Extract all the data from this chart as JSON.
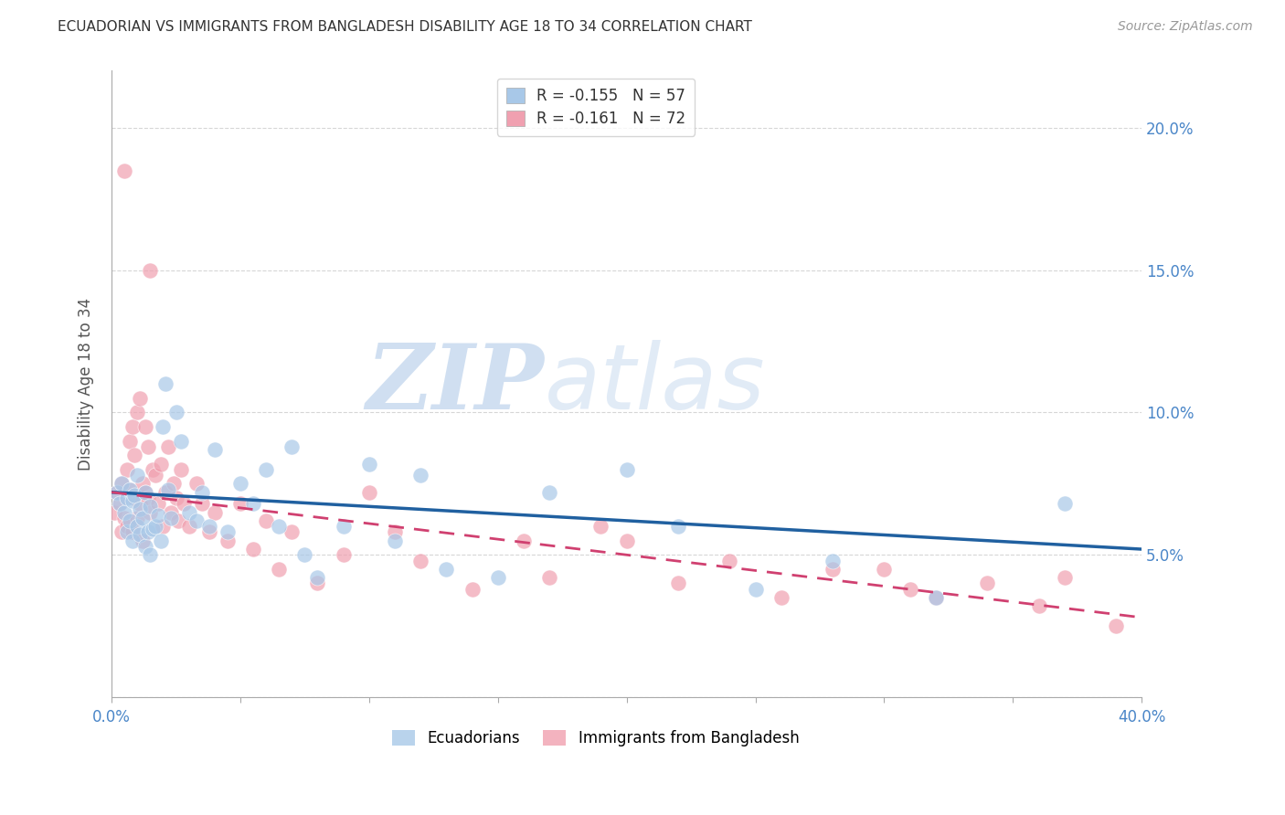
{
  "title": "ECUADORIAN VS IMMIGRANTS FROM BANGLADESH DISABILITY AGE 18 TO 34 CORRELATION CHART",
  "source": "Source: ZipAtlas.com",
  "ylabel": "Disability Age 18 to 34",
  "xlim": [
    0,
    0.4
  ],
  "ylim": [
    0,
    0.22
  ],
  "blue_R": -0.155,
  "blue_N": 57,
  "pink_R": -0.161,
  "pink_N": 72,
  "blue_color": "#a8c8e8",
  "pink_color": "#f0a0b0",
  "blue_line_color": "#2060a0",
  "pink_line_color": "#d04070",
  "watermark_zip": "ZIP",
  "watermark_atlas": "atlas",
  "legend_label_blue": "Ecuadorians",
  "legend_label_pink": "Immigrants from Bangladesh",
  "blue_line_intercept": 0.072,
  "blue_line_slope": -0.05,
  "pink_line_intercept": 0.072,
  "pink_line_slope": -0.11,
  "blue_scatter_x": [
    0.002,
    0.003,
    0.004,
    0.005,
    0.006,
    0.006,
    0.007,
    0.007,
    0.008,
    0.008,
    0.009,
    0.01,
    0.01,
    0.011,
    0.011,
    0.012,
    0.013,
    0.013,
    0.014,
    0.015,
    0.015,
    0.016,
    0.017,
    0.018,
    0.019,
    0.02,
    0.021,
    0.022,
    0.023,
    0.025,
    0.027,
    0.03,
    0.033,
    0.035,
    0.038,
    0.04,
    0.045,
    0.05,
    0.055,
    0.06,
    0.065,
    0.07,
    0.075,
    0.08,
    0.09,
    0.1,
    0.11,
    0.12,
    0.13,
    0.15,
    0.17,
    0.2,
    0.22,
    0.25,
    0.28,
    0.32,
    0.37
  ],
  "blue_scatter_y": [
    0.072,
    0.068,
    0.075,
    0.065,
    0.07,
    0.058,
    0.073,
    0.062,
    0.069,
    0.055,
    0.071,
    0.06,
    0.078,
    0.066,
    0.057,
    0.063,
    0.072,
    0.053,
    0.058,
    0.067,
    0.05,
    0.059,
    0.06,
    0.064,
    0.055,
    0.095,
    0.11,
    0.073,
    0.063,
    0.1,
    0.09,
    0.065,
    0.062,
    0.072,
    0.06,
    0.087,
    0.058,
    0.075,
    0.068,
    0.08,
    0.06,
    0.088,
    0.05,
    0.042,
    0.06,
    0.082,
    0.055,
    0.078,
    0.045,
    0.042,
    0.072,
    0.08,
    0.06,
    0.038,
    0.048,
    0.035,
    0.068
  ],
  "pink_scatter_x": [
    0.001,
    0.002,
    0.003,
    0.004,
    0.004,
    0.005,
    0.005,
    0.006,
    0.006,
    0.007,
    0.007,
    0.008,
    0.008,
    0.009,
    0.009,
    0.01,
    0.01,
    0.011,
    0.011,
    0.012,
    0.012,
    0.013,
    0.013,
    0.014,
    0.014,
    0.015,
    0.015,
    0.016,
    0.017,
    0.018,
    0.019,
    0.02,
    0.021,
    0.022,
    0.023,
    0.024,
    0.025,
    0.026,
    0.027,
    0.028,
    0.03,
    0.033,
    0.035,
    0.038,
    0.04,
    0.045,
    0.05,
    0.055,
    0.06,
    0.065,
    0.07,
    0.08,
    0.09,
    0.1,
    0.11,
    0.12,
    0.14,
    0.16,
    0.17,
    0.19,
    0.2,
    0.22,
    0.24,
    0.26,
    0.28,
    0.3,
    0.31,
    0.32,
    0.34,
    0.36,
    0.37,
    0.39
  ],
  "pink_scatter_y": [
    0.065,
    0.072,
    0.068,
    0.075,
    0.058,
    0.185,
    0.063,
    0.08,
    0.06,
    0.09,
    0.073,
    0.095,
    0.058,
    0.085,
    0.07,
    0.1,
    0.063,
    0.105,
    0.068,
    0.075,
    0.055,
    0.095,
    0.072,
    0.088,
    0.07,
    0.15,
    0.065,
    0.08,
    0.078,
    0.068,
    0.082,
    0.06,
    0.072,
    0.088,
    0.065,
    0.075,
    0.07,
    0.062,
    0.08,
    0.068,
    0.06,
    0.075,
    0.068,
    0.058,
    0.065,
    0.055,
    0.068,
    0.052,
    0.062,
    0.045,
    0.058,
    0.04,
    0.05,
    0.072,
    0.058,
    0.048,
    0.038,
    0.055,
    0.042,
    0.06,
    0.055,
    0.04,
    0.048,
    0.035,
    0.045,
    0.045,
    0.038,
    0.035,
    0.04,
    0.032,
    0.042,
    0.025
  ]
}
